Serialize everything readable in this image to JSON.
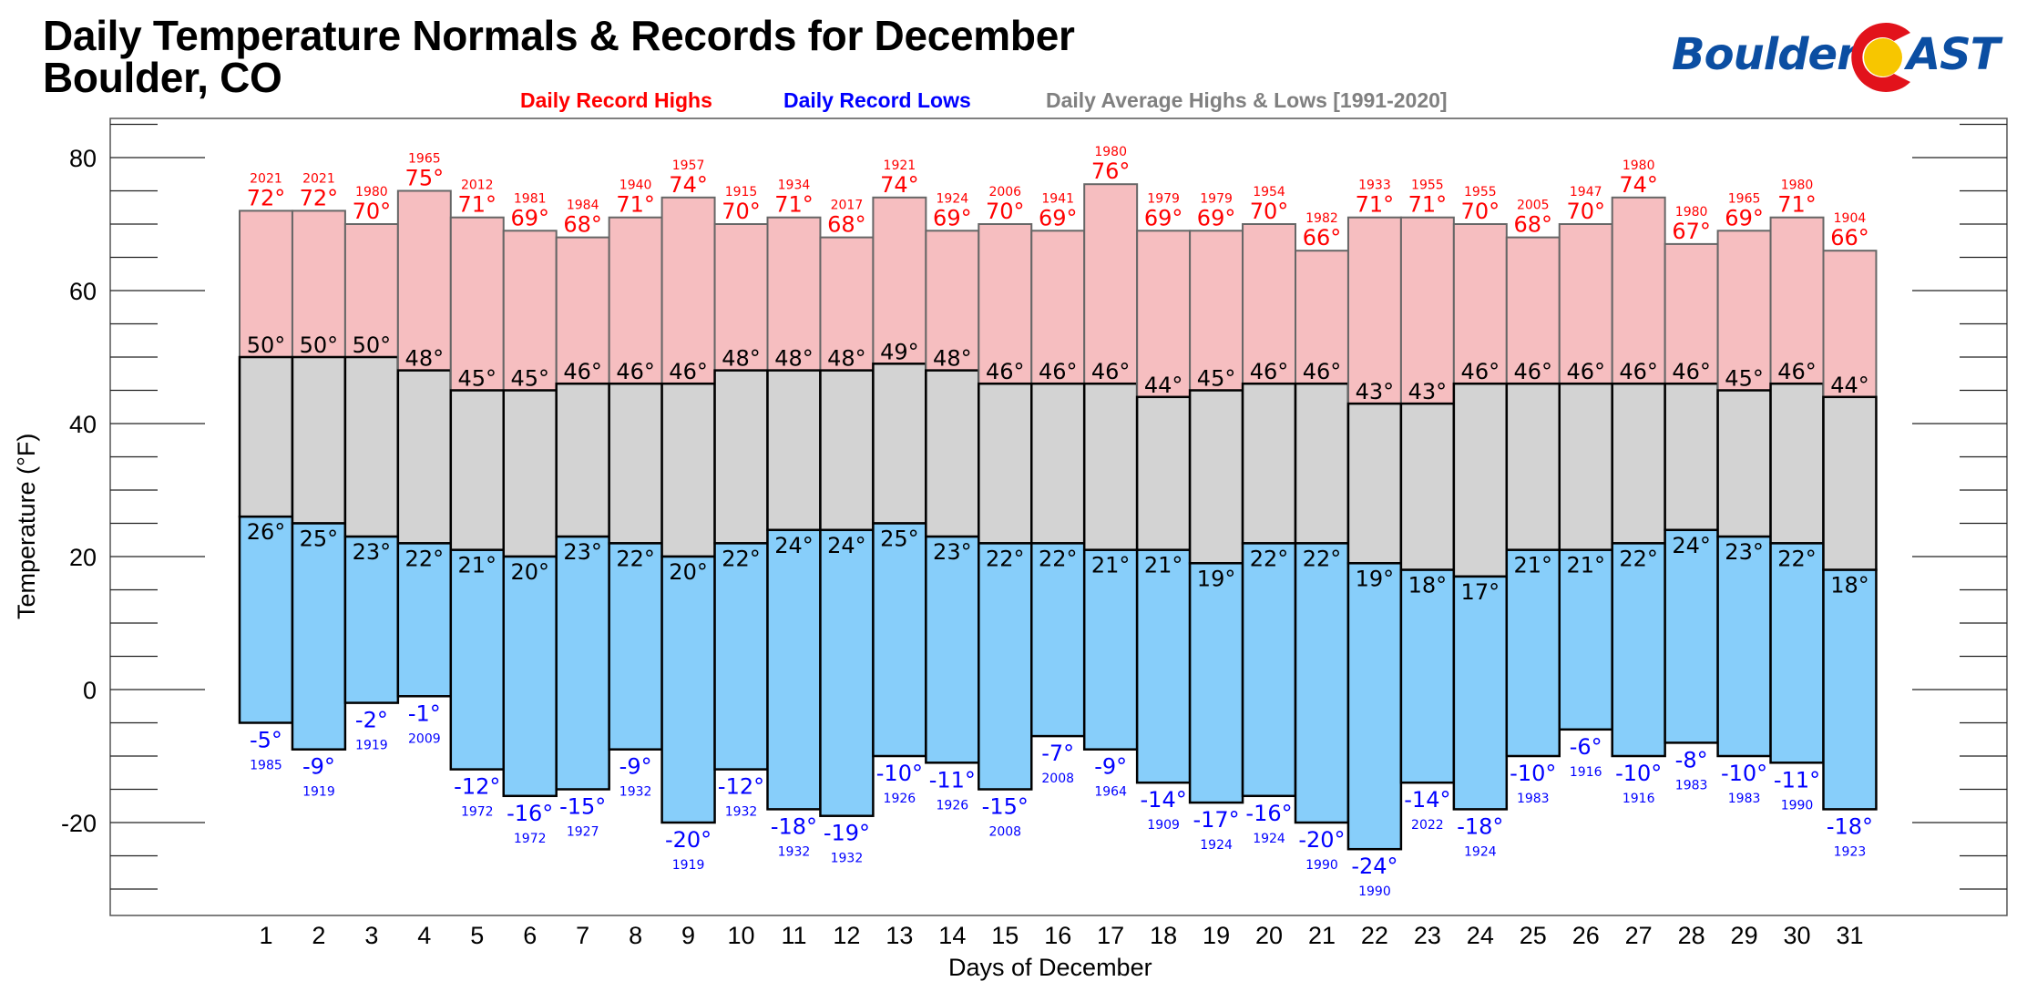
{
  "header": {
    "title_line1": "Daily Temperature Normals & Records for December",
    "title_line2": "Boulder, CO",
    "logo_left": "Boulder",
    "logo_right": "AST",
    "logo_icon": "colorado-c-sun-icon"
  },
  "colors": {
    "record_high": "#ff0000",
    "record_low": "#0000ff",
    "average": "#808080",
    "high_fill": "#f6bec0",
    "avg_fill": "#d3d3d3",
    "low_fill": "#87cefa",
    "logo_blue": "#0b4ea2",
    "logo_red": "#e2121b",
    "logo_yellow": "#f7c600"
  },
  "chart_data": {
    "type": "bar",
    "title": "Daily Temperature Normals & Records for December",
    "subtitle": "Boulder, CO",
    "xlabel": "Days of December",
    "ylabel": "Temperature (°F)",
    "ylim": [
      -34,
      86
    ],
    "yticks_major": [
      -20,
      0,
      20,
      40,
      60,
      80
    ],
    "yticks_minor_step": 5,
    "grid": false,
    "legend": {
      "placement": "top-center",
      "entries": [
        "Daily Record Highs",
        "Daily Record Lows",
        "Daily Average Highs & Lows [1991-2020]"
      ]
    },
    "categories": [
      "1",
      "2",
      "3",
      "4",
      "5",
      "6",
      "7",
      "8",
      "9",
      "10",
      "11",
      "12",
      "13",
      "14",
      "15",
      "16",
      "17",
      "18",
      "19",
      "20",
      "21",
      "22",
      "23",
      "24",
      "25",
      "26",
      "27",
      "28",
      "29",
      "30",
      "31"
    ],
    "degree_suffix": "°",
    "series": [
      {
        "name": "Daily Record Highs",
        "values": [
          72,
          72,
          70,
          75,
          71,
          69,
          68,
          71,
          74,
          70,
          71,
          68,
          74,
          69,
          70,
          69,
          76,
          69,
          69,
          70,
          66,
          71,
          71,
          70,
          68,
          70,
          74,
          67,
          69,
          71,
          66
        ],
        "years": [
          "2021",
          "2021",
          "1980",
          "1965",
          "2012",
          "1981",
          "1984",
          "1940",
          "1957",
          "1915",
          "1934",
          "2017",
          "1921",
          "1924",
          "2006",
          "1941",
          "1980",
          "1979",
          "1979",
          "1954",
          "1982",
          "1933",
          "1955",
          "1955",
          "2005",
          "1947",
          "1980",
          "1980",
          "1965",
          "1980",
          "1904"
        ]
      },
      {
        "name": "Daily Average Highs",
        "values": [
          50,
          50,
          50,
          48,
          45,
          45,
          46,
          46,
          46,
          48,
          48,
          48,
          49,
          48,
          46,
          46,
          46,
          44,
          45,
          46,
          46,
          43,
          43,
          46,
          46,
          46,
          46,
          46,
          45,
          46,
          44
        ]
      },
      {
        "name": "Daily Average Lows",
        "values": [
          26,
          25,
          23,
          22,
          21,
          20,
          23,
          22,
          20,
          22,
          24,
          24,
          25,
          23,
          22,
          22,
          21,
          21,
          19,
          22,
          22,
          19,
          18,
          17,
          21,
          21,
          22,
          24,
          23,
          22,
          18
        ]
      },
      {
        "name": "Daily Record Lows",
        "values": [
          -5,
          -9,
          -2,
          -1,
          -12,
          -16,
          -15,
          -9,
          -20,
          -12,
          -18,
          -19,
          -10,
          -11,
          -15,
          -7,
          -9,
          -14,
          -17,
          -16,
          -20,
          -24,
          -14,
          -18,
          -10,
          -6,
          -10,
          -8,
          -10,
          -11,
          -18
        ],
        "years": [
          "1985",
          "1919",
          "1919",
          "2009",
          "1972",
          "1972",
          "1927",
          "1932",
          "1919",
          "1932",
          "1932",
          "1932",
          "1926",
          "1926",
          "2008",
          "2008",
          "1964",
          "1909",
          "1924",
          "1924",
          "1990",
          "1990",
          "2022",
          "1924",
          "1983",
          "1916",
          "1916",
          "1983",
          "1983",
          "1990",
          "1923"
        ]
      }
    ]
  }
}
